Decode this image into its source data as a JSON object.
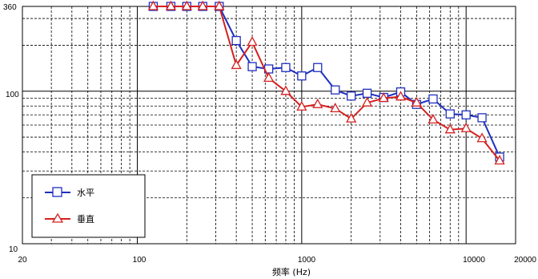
{
  "chart_data": {
    "type": "line",
    "title": "",
    "xlabel": "频率 (Hz)",
    "ylabel": "",
    "xscale": "log",
    "yscale": "log",
    "xlim": [
      20,
      20000
    ],
    "ylim": [
      10,
      360
    ],
    "x_tick_labels": [
      "20",
      "100",
      "1000",
      "10000",
      "20000"
    ],
    "y_tick_labels": [
      "360",
      "100",
      "10"
    ],
    "grid": true,
    "legend_position": "bottom-left",
    "x": [
      125,
      160,
      200,
      250,
      315,
      400,
      500,
      630,
      800,
      1000,
      1250,
      1600,
      2000,
      2500,
      3150,
      4000,
      5000,
      6300,
      8000,
      10000,
      12500,
      16000
    ],
    "series": [
      {
        "name": "水平",
        "color": "#1f2fbf",
        "marker": "square",
        "values": [
          360,
          360,
          360,
          360,
          360,
          215,
          145,
          140,
          143,
          126,
          143,
          102,
          93,
          97,
          91,
          99,
          82,
          89,
          71,
          70,
          67,
          37
        ]
      },
      {
        "name": "垂直",
        "color": "#d42020",
        "marker": "triangle",
        "values": [
          360,
          360,
          360,
          360,
          360,
          148,
          210,
          122,
          100,
          79,
          82,
          77,
          66,
          84,
          90,
          92,
          84,
          65,
          56,
          57,
          49,
          35
        ]
      }
    ]
  }
}
